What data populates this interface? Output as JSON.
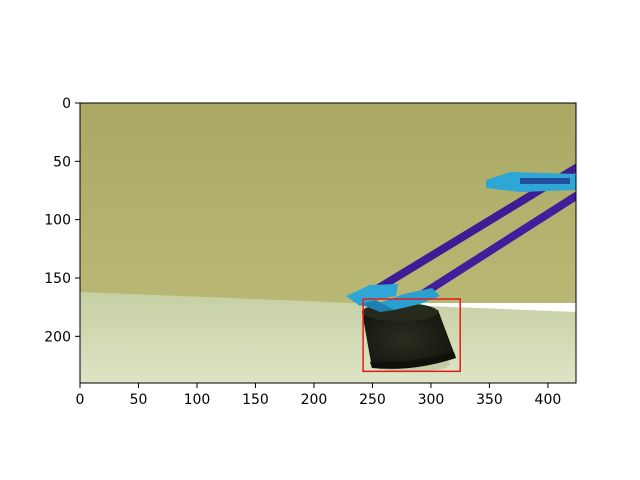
{
  "chart_data": {
    "type": "image",
    "title": "",
    "xlabel": "",
    "ylabel": "",
    "xlim": [
      0,
      424
    ],
    "ylim": [
      240,
      0
    ],
    "x_ticks": [
      0,
      50,
      100,
      150,
      200,
      250,
      300,
      350,
      400
    ],
    "y_ticks": [
      0,
      50,
      100,
      150,
      200
    ],
    "x_tick_labels": [
      "0",
      "50",
      "100",
      "150",
      "200",
      "250",
      "300",
      "350",
      "400"
    ],
    "y_tick_labels": [
      "0",
      "50",
      "100",
      "150",
      "200"
    ],
    "annotations": [
      {
        "type": "bounding-box",
        "x0": 242,
        "y0": 168,
        "x1": 325,
        "y1": 230,
        "color": "#e31a1c"
      }
    ],
    "scene": {
      "wall": "#b3b26c",
      "floor": "#cfd6b0",
      "arm": "#3f1f99",
      "gripper": "#2fa7d6",
      "object": "#1f2216"
    }
  }
}
